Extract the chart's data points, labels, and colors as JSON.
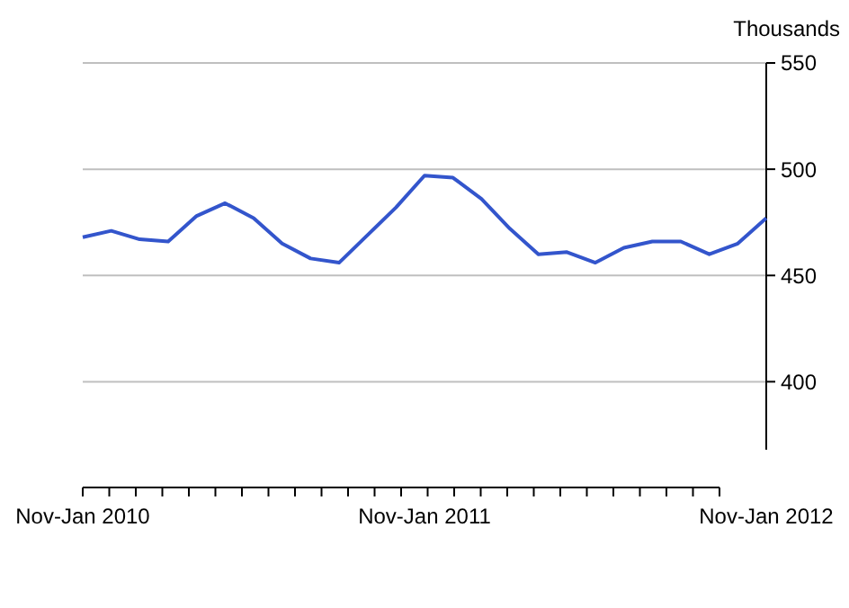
{
  "chart_data": {
    "type": "line",
    "ylabel": "Thousands",
    "categories": [
      "Nov-Jan 2010",
      null,
      null,
      null,
      null,
      null,
      null,
      null,
      null,
      null,
      null,
      null,
      "Nov-Jan 2011",
      null,
      null,
      null,
      null,
      null,
      null,
      null,
      null,
      null,
      null,
      null,
      "Nov-Jan 2012"
    ],
    "series": [
      {
        "color": "#3355cc",
        "values": [
          468,
          471,
          467,
          466,
          478,
          484,
          477,
          465,
          458,
          456,
          469,
          482,
          497,
          496,
          486,
          472,
          460,
          461,
          456,
          463,
          466,
          466,
          460,
          465,
          477
        ]
      }
    ],
    "ylim": [
      368,
      550
    ],
    "yticks": [
      400,
      450,
      500,
      550
    ],
    "grid": "y",
    "marker": "none",
    "line_style": "solid"
  }
}
